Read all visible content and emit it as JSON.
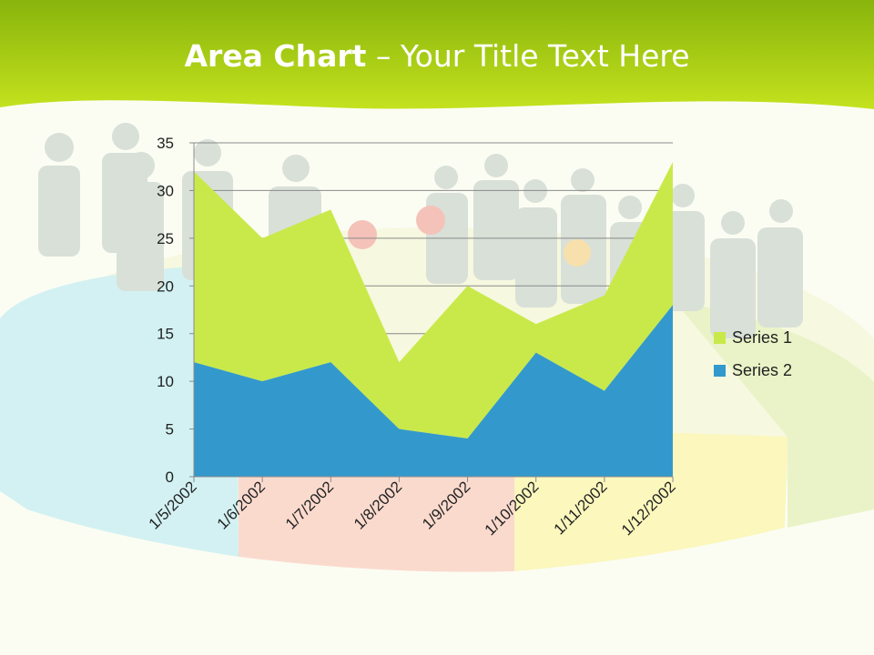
{
  "title": {
    "bold": "Area Chart",
    "rest": "– Your Title Text Here"
  },
  "colors": {
    "header_top": "#88b40c",
    "header_bottom": "#c4e21e",
    "series1": "#c9e94a",
    "series2": "#3399cc"
  },
  "chart_data": {
    "type": "area",
    "stacked": true,
    "categories": [
      "1/5/2002",
      "1/6/2002",
      "1/7/2002",
      "1/8/2002",
      "1/9/2002",
      "1/10/2002",
      "1/11/2002",
      "1/12/2002"
    ],
    "series": [
      {
        "name": "Series 1",
        "values": [
          20,
          15,
          16,
          7,
          16,
          3,
          10,
          15
        ],
        "color": "#c9e94a"
      },
      {
        "name": "Series 2",
        "values": [
          12,
          10,
          12,
          5,
          4,
          13,
          9,
          18
        ],
        "color": "#3399cc"
      }
    ],
    "yticks": [
      0,
      5,
      10,
      15,
      20,
      25,
      30,
      35
    ],
    "ylim": [
      0,
      35
    ],
    "grid": true,
    "legend": "right"
  }
}
